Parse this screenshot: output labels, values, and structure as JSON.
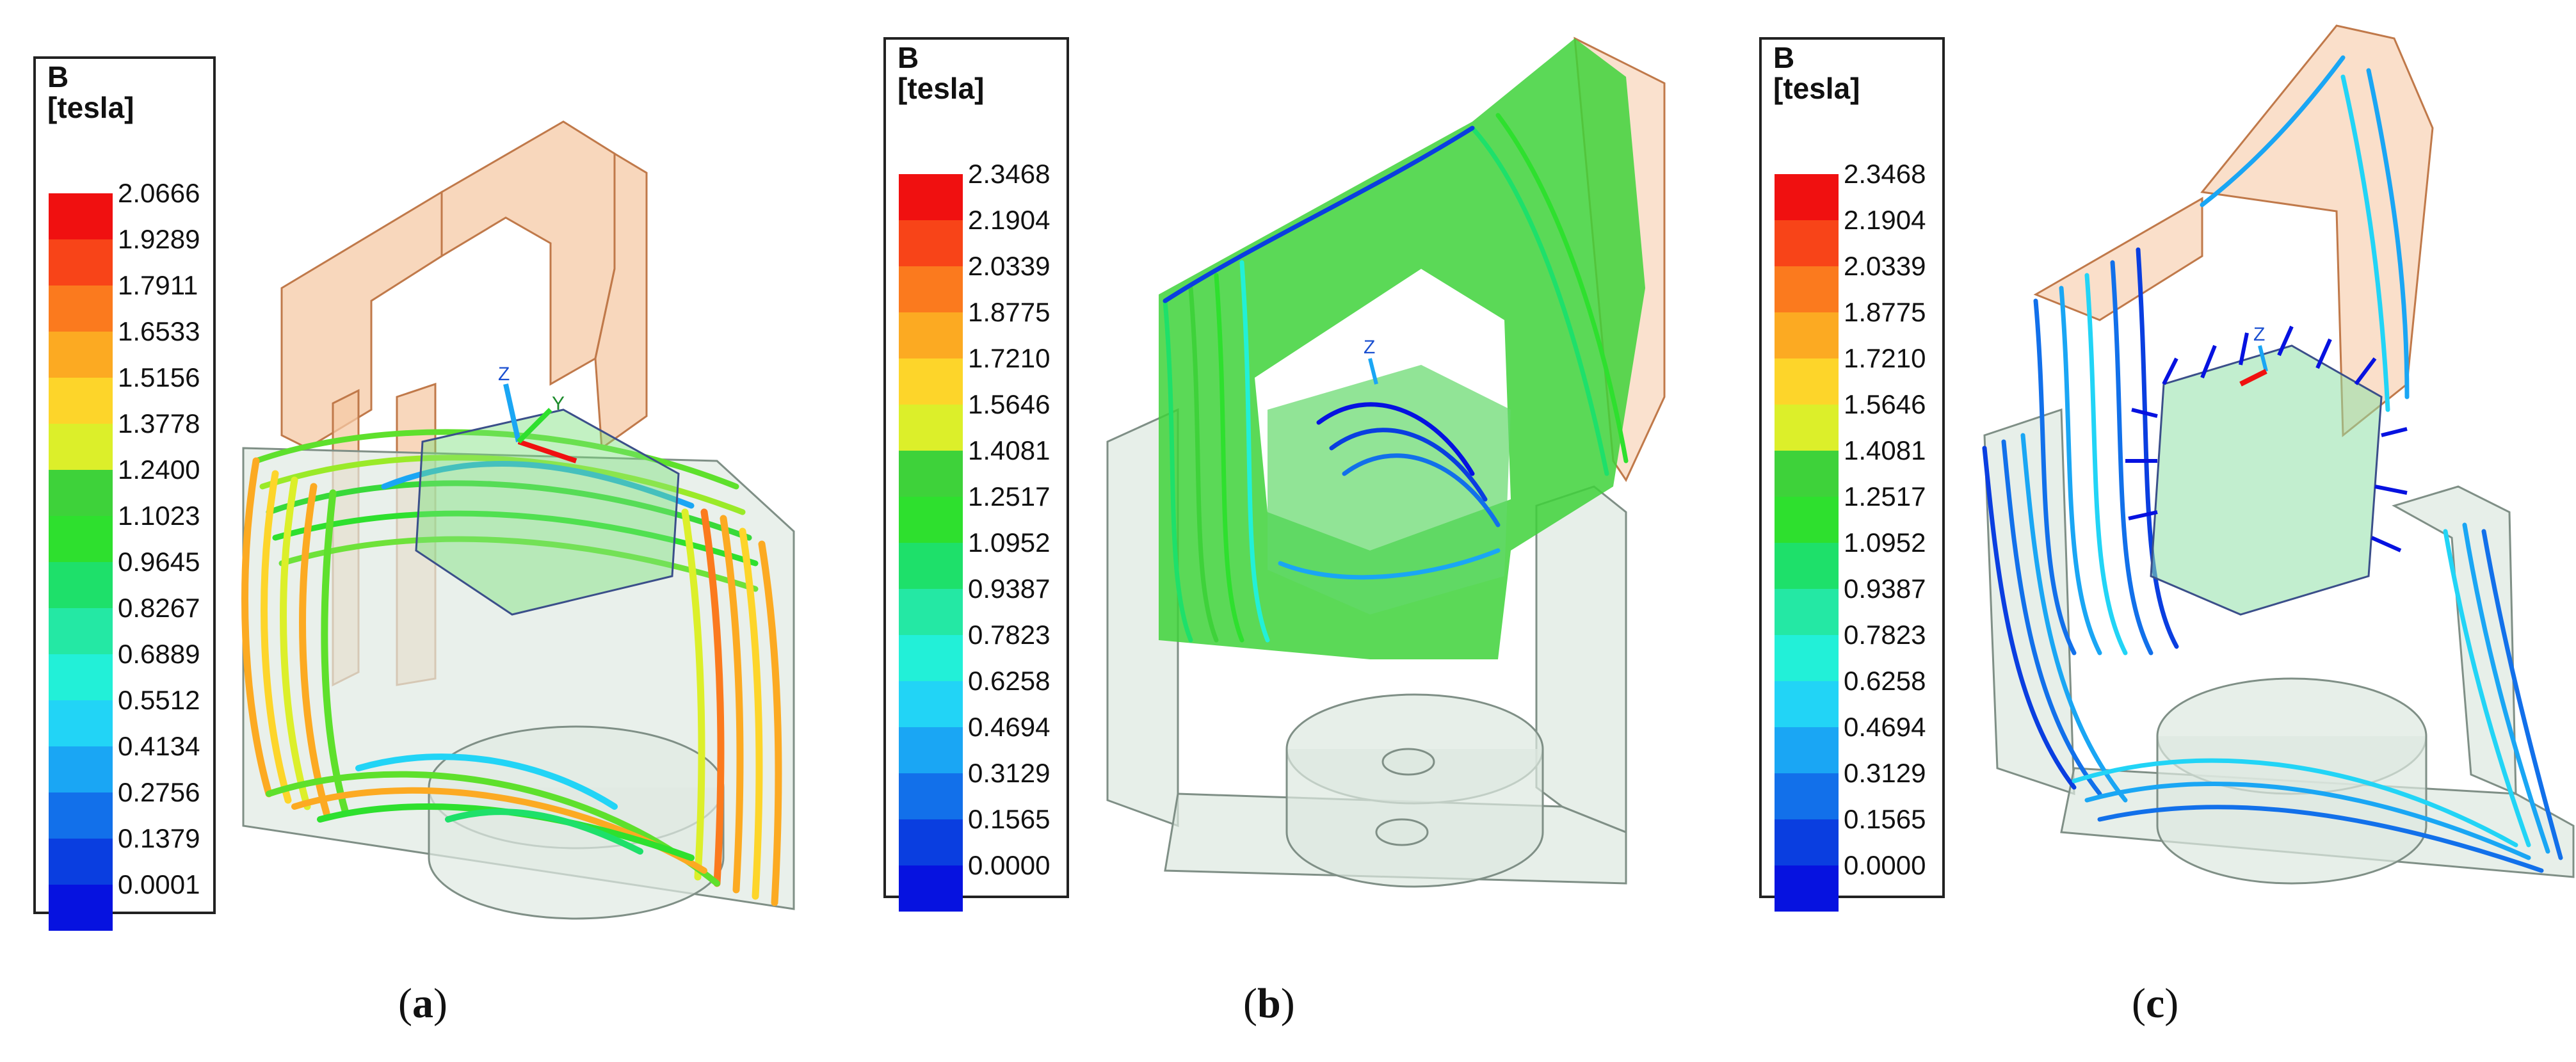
{
  "panels": [
    {
      "id": "a",
      "caption_open": "(",
      "caption_letter": "a",
      "caption_close": ")",
      "legend_title": "B",
      "legend_unit": "[tesla]",
      "ticks": [
        "2.0666",
        "1.9289",
        "1.7911",
        "1.6533",
        "1.5156",
        "1.3778",
        "1.2400",
        "1.1023",
        "0.9645",
        "0.8267",
        "0.6889",
        "0.5512",
        "0.4134",
        "0.2756",
        "0.1379",
        "0.0001"
      ],
      "axis_labels": [
        "Z",
        "Y"
      ]
    },
    {
      "id": "b",
      "caption_open": "(",
      "caption_letter": "b",
      "caption_close": ")",
      "legend_title": "B",
      "legend_unit": "[tesla]",
      "ticks": [
        "2.3468",
        "2.1904",
        "2.0339",
        "1.8775",
        "1.7210",
        "1.5646",
        "1.4081",
        "1.2517",
        "1.0952",
        "0.9387",
        "0.7823",
        "0.6258",
        "0.4694",
        "0.3129",
        "0.1565",
        "0.0000"
      ],
      "axis_labels": [
        "Z"
      ]
    },
    {
      "id": "c",
      "caption_open": "(",
      "caption_letter": "c",
      "caption_close": ")",
      "legend_title": "B",
      "legend_unit": "[tesla]",
      "ticks": [
        "2.3468",
        "2.1904",
        "2.0339",
        "1.8775",
        "1.7210",
        "1.5646",
        "1.4081",
        "1.2517",
        "1.0952",
        "0.9387",
        "0.7823",
        "0.6258",
        "0.4694",
        "0.3129",
        "0.1565",
        "0.0000"
      ],
      "axis_labels": [
        "Z"
      ]
    }
  ],
  "colorbar": [
    "#f01010",
    "#f84418",
    "#fb7a1e",
    "#fcaa22",
    "#fdd52a",
    "#dcef2a",
    "#3ed23a",
    "#2ee02e",
    "#1ee06a",
    "#24e8a4",
    "#22f0d8",
    "#22d4f6",
    "#1aa6f4",
    "#1270ea",
    "#0a3ee0",
    "#0612e0"
  ],
  "colors": {
    "yoke_orange": "#f6c9a6",
    "yoke_edge": "#c0794a",
    "yoke_grey": "#dde8e0",
    "yoke_grey_edge": "#7f8f86"
  }
}
